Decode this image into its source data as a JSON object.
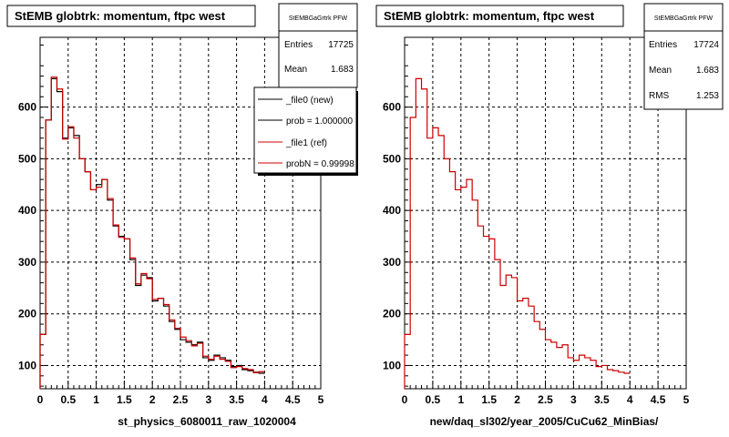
{
  "chart_data": [
    {
      "type": "line",
      "title": "StEMB globtrk: momentum, ftpc west",
      "xlabel": "st_physics_6080011_raw_1020004",
      "ylabel": "",
      "xlim": [
        0,
        5
      ],
      "ylim": [
        55,
        735
      ],
      "grid": true,
      "x_ticks": [
        "0",
        "0.5",
        "1",
        "1.5",
        "2",
        "2.5",
        "3",
        "3.5",
        "4",
        "4.5",
        "5"
      ],
      "y_ticks": [
        "100",
        "200",
        "300",
        "400",
        "500",
        "600"
      ],
      "series": [
        {
          "name": "_file0 (new)",
          "color": "#000000",
          "step": true,
          "x_start": 0,
          "bin_width": 0.1,
          "values": [
            160,
            575,
            655,
            630,
            540,
            560,
            545,
            500,
            475,
            440,
            450,
            460,
            420,
            370,
            350,
            345,
            305,
            255,
            275,
            270,
            225,
            230,
            215,
            185,
            170,
            150,
            145,
            140,
            145,
            115,
            110,
            120,
            115,
            110,
            98,
            100,
            92,
            90,
            87,
            85
          ]
        },
        {
          "name": "_file1 (ref)",
          "color": "#cc0000",
          "step": true,
          "x_start": 0,
          "bin_width": 0.1,
          "values": [
            160,
            575,
            658,
            635,
            538,
            562,
            540,
            500,
            475,
            440,
            445,
            460,
            423,
            372,
            348,
            345,
            308,
            258,
            278,
            268,
            228,
            230,
            218,
            188,
            172,
            155,
            148,
            138,
            143,
            118,
            112,
            118,
            112,
            108,
            96,
            98,
            94,
            92,
            86,
            88
          ]
        }
      ],
      "stats_box": {
        "title": "StEMBGaGrtrk PFW",
        "entries_label": "Entries",
        "entries": "17725",
        "mean_label": "Mean",
        "mean": "1.683"
      },
      "legend": {
        "position": "top-right",
        "entries": [
          {
            "label": "_file0 (new)",
            "color": "#000000"
          },
          {
            "label": "prob = 1.000000",
            "color": "#000000"
          },
          {
            "label": "_file1 (ref)",
            "color": "#cc0000"
          },
          {
            "label": "probN = 0.99998",
            "color": "#cc0000"
          }
        ]
      }
    },
    {
      "type": "line",
      "title": "StEMB globtrk: momentum, ftpc west",
      "xlabel": "new/daq_sl302/year_2005/CuCu62_MinBias/",
      "ylabel": "",
      "xlim": [
        0,
        5
      ],
      "ylim": [
        55,
        735
      ],
      "grid": true,
      "x_ticks": [
        "0",
        "0.5",
        "1",
        "1.5",
        "2",
        "2.5",
        "3",
        "3.5",
        "4",
        "4.5",
        "5"
      ],
      "y_ticks": [
        "100",
        "200",
        "300",
        "400",
        "500",
        "600"
      ],
      "series": [
        {
          "name": "",
          "color": "#cc0000",
          "step": true,
          "x_start": 0,
          "bin_width": 0.1,
          "values": [
            160,
            580,
            655,
            635,
            540,
            560,
            545,
            500,
            475,
            440,
            445,
            460,
            420,
            370,
            350,
            345,
            305,
            255,
            275,
            270,
            225,
            230,
            215,
            185,
            170,
            150,
            145,
            135,
            140,
            115,
            110,
            120,
            115,
            110,
            98,
            100,
            92,
            90,
            87,
            85
          ]
        }
      ],
      "stats_box": {
        "title": "StEMBGaGrtrk PFW",
        "entries_label": "Entries",
        "entries": "17724",
        "mean_label": "Mean",
        "mean": "1.683",
        "rms_label": "RMS",
        "rms": "1.253"
      }
    }
  ]
}
